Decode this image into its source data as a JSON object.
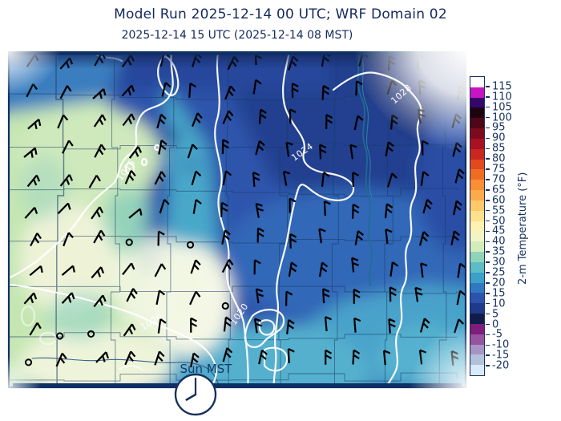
{
  "header": {
    "title": "Model Run 2025-12-14 00 UTC; WRF Domain 02",
    "subtitle": "2025-12-14 15 UTC  (2025-12-14 08 MST)"
  },
  "chart_data": {
    "type": "heatmap",
    "title": "Model Run 2025-12-14 00 UTC; WRF Domain 02",
    "subtitle": "2025-12-14 15 UTC  (2025-12-14 08 MST)",
    "field": "2-m temperature shaded over county map with wind barbs and sea-level pressure contours",
    "pressure_contour_values_hPa": [
      1016,
      1020,
      1024,
      1028
    ],
    "contour_labels": [
      {
        "value": "1016"
      },
      {
        "value": "1020"
      },
      {
        "value": "1020"
      },
      {
        "value": "1024"
      },
      {
        "value": "1028"
      }
    ],
    "temperature_regions": [
      {
        "area": "west / southwest",
        "approx_F": "40-50"
      },
      {
        "area": "center diagonal band",
        "approx_F": "25-35"
      },
      {
        "area": "north and northeast",
        "approx_F": "10-15"
      },
      {
        "area": "southeast",
        "approx_F": "20-30"
      }
    ],
    "colorbar": {
      "label": "2-m Temperature (°F)",
      "unit": "°F",
      "ticks": [
        115,
        110,
        105,
        100,
        95,
        90,
        85,
        80,
        75,
        70,
        65,
        60,
        55,
        50,
        45,
        40,
        35,
        30,
        25,
        20,
        15,
        10,
        5,
        0,
        -5,
        -10,
        -15,
        -20
      ],
      "segment_colors_top_to_bottom": [
        "#ffffff",
        "#c716c1",
        "#35076b",
        "#1f0210",
        "#4f0616",
        "#7c0b1d",
        "#a81122",
        "#c8281f",
        "#e04a1e",
        "#ef6c23",
        "#f98e35",
        "#fdab4a",
        "#fec968",
        "#fee18d",
        "#fef0b0",
        "#f3f4c4",
        "#d4ecba",
        "#8fd4b8",
        "#5dbcc6",
        "#3da0c9",
        "#3079c0",
        "#2c53ab",
        "#1f3a88",
        "#121c4b",
        "#7e1d7b",
        "#96549f",
        "#a794c4",
        "#b3c2dc",
        "#d9eaf8"
      ]
    },
    "annotations": {
      "timezone_label": "Sun MST",
      "clock_time_shown": "08:00"
    }
  }
}
